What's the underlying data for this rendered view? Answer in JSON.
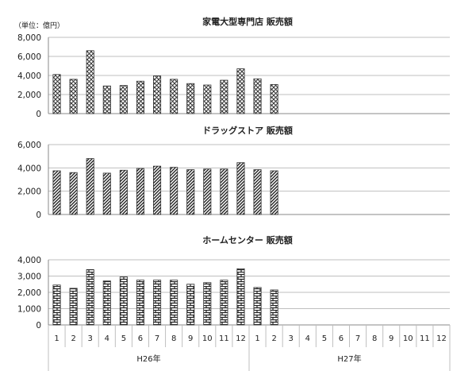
{
  "chart_data": [
    {
      "type": "bar",
      "title": "家電大型専門店 販売額",
      "unit_label": "（単位：億円）",
      "ylim": [
        0,
        8000
      ],
      "yticks": [
        0,
        2000,
        4000,
        6000,
        8000
      ],
      "ytick_labels": [
        "0",
        "2,000",
        "4,000",
        "6,000",
        "8,000"
      ],
      "pattern": "crosshatch",
      "values": [
        4100,
        3600,
        6600,
        2900,
        2950,
        3400,
        3950,
        3600,
        3150,
        3000,
        3500,
        4700,
        3650,
        3050
      ]
    },
    {
      "type": "bar",
      "title": "ドラッグストア 販売額",
      "ylim": [
        0,
        6000
      ],
      "yticks": [
        0,
        2000,
        4000,
        6000
      ],
      "ytick_labels": [
        "0",
        "2,000",
        "4,000",
        "6,000"
      ],
      "pattern": "diagonal",
      "values": [
        3750,
        3600,
        4800,
        3550,
        3800,
        3950,
        4150,
        4050,
        3850,
        3900,
        3900,
        4450,
        3850,
        3750
      ]
    },
    {
      "type": "bar",
      "title": "ホームセンター 販売額",
      "ylim": [
        0,
        4000
      ],
      "yticks": [
        0,
        1000,
        2000,
        3000,
        4000
      ],
      "ytick_labels": [
        "0",
        "1,000",
        "2,000",
        "3,000",
        "4,000"
      ],
      "pattern": "brick",
      "values": [
        2450,
        2250,
        3400,
        2700,
        2950,
        2750,
        2750,
        2750,
        2500,
        2600,
        2750,
        3450,
        2300,
        2150
      ]
    }
  ],
  "x_axis": {
    "categories": [
      "1",
      "2",
      "3",
      "4",
      "5",
      "6",
      "7",
      "8",
      "9",
      "10",
      "11",
      "12",
      "1",
      "2",
      "3",
      "4",
      "5",
      "6",
      "7",
      "8",
      "9",
      "10",
      "11",
      "12"
    ],
    "groups": [
      "H26年",
      "H27年"
    ]
  },
  "colors": {
    "bar_stroke": "#333333",
    "grid": "#bfbfbf",
    "axis": "#888888"
  }
}
